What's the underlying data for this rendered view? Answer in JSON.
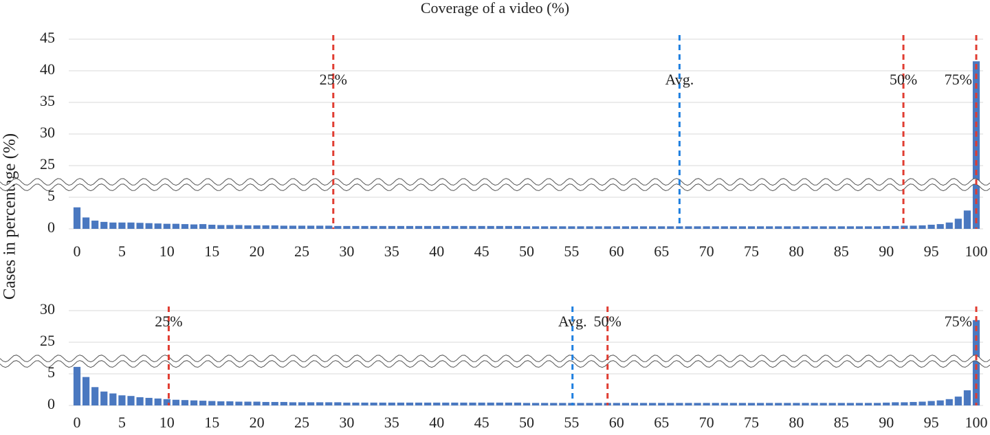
{
  "title": "Coverage of a video (%)",
  "ylabel": "Cases in percentage (%)",
  "chart_data": [
    {
      "type": "bar",
      "color": "#4a78c0",
      "grid": true,
      "x": [
        0,
        1,
        2,
        3,
        4,
        5,
        6,
        7,
        8,
        9,
        10,
        11,
        12,
        13,
        14,
        15,
        16,
        17,
        18,
        19,
        20,
        21,
        22,
        23,
        24,
        25,
        26,
        27,
        28,
        29,
        30,
        31,
        32,
        33,
        34,
        35,
        36,
        37,
        38,
        39,
        40,
        41,
        42,
        43,
        44,
        45,
        46,
        47,
        48,
        49,
        50,
        51,
        52,
        53,
        54,
        55,
        56,
        57,
        58,
        59,
        60,
        61,
        62,
        63,
        64,
        65,
        66,
        67,
        68,
        69,
        70,
        71,
        72,
        73,
        74,
        75,
        76,
        77,
        78,
        79,
        80,
        81,
        82,
        83,
        84,
        85,
        86,
        87,
        88,
        89,
        90,
        91,
        92,
        93,
        94,
        95,
        96,
        97,
        98,
        99,
        100
      ],
      "values": [
        3.4,
        1.8,
        1.3,
        1.1,
        1.0,
        1.0,
        1.0,
        0.95,
        0.9,
        0.85,
        0.8,
        0.8,
        0.75,
        0.7,
        0.75,
        0.65,
        0.6,
        0.6,
        0.6,
        0.55,
        0.55,
        0.55,
        0.55,
        0.5,
        0.5,
        0.5,
        0.5,
        0.5,
        0.5,
        0.45,
        0.45,
        0.45,
        0.45,
        0.45,
        0.45,
        0.45,
        0.45,
        0.45,
        0.45,
        0.45,
        0.45,
        0.45,
        0.45,
        0.45,
        0.45,
        0.45,
        0.45,
        0.45,
        0.45,
        0.45,
        0.4,
        0.4,
        0.4,
        0.4,
        0.4,
        0.4,
        0.4,
        0.4,
        0.4,
        0.4,
        0.4,
        0.4,
        0.4,
        0.4,
        0.4,
        0.4,
        0.4,
        0.4,
        0.4,
        0.4,
        0.4,
        0.4,
        0.4,
        0.4,
        0.4,
        0.4,
        0.4,
        0.4,
        0.4,
        0.4,
        0.4,
        0.4,
        0.4,
        0.4,
        0.4,
        0.4,
        0.4,
        0.4,
        0.4,
        0.4,
        0.45,
        0.45,
        0.5,
        0.5,
        0.55,
        0.65,
        0.75,
        1.0,
        1.6,
        2.9,
        41.5
      ],
      "xlim": [
        0,
        100
      ],
      "xticks": [
        0,
        5,
        10,
        15,
        20,
        25,
        30,
        35,
        40,
        45,
        50,
        55,
        60,
        65,
        70,
        75,
        80,
        85,
        90,
        95,
        100
      ],
      "ylim": [
        0,
        45
      ],
      "yticks": [
        0,
        5,
        25,
        30,
        35,
        40,
        45
      ],
      "axis_break": [
        7,
        22
      ],
      "vlines": [
        {
          "x": 28.5,
          "label": "25%",
          "color": "#e03c31"
        },
        {
          "x": 67,
          "label": "Avg.",
          "color": "#1e7fe0"
        },
        {
          "x": 91.9,
          "label": "50%",
          "color": "#e03c31"
        },
        {
          "x": 100,
          "label": "75%",
          "color": "#e03c31"
        }
      ]
    },
    {
      "type": "bar",
      "color": "#4a78c0",
      "grid": true,
      "x": [
        0,
        1,
        2,
        3,
        4,
        5,
        6,
        7,
        8,
        9,
        10,
        11,
        12,
        13,
        14,
        15,
        16,
        17,
        18,
        19,
        20,
        21,
        22,
        23,
        24,
        25,
        26,
        27,
        28,
        29,
        30,
        31,
        32,
        33,
        34,
        35,
        36,
        37,
        38,
        39,
        40,
        41,
        42,
        43,
        44,
        45,
        46,
        47,
        48,
        49,
        50,
        51,
        52,
        53,
        54,
        55,
        56,
        57,
        58,
        59,
        60,
        61,
        62,
        63,
        64,
        65,
        66,
        67,
        68,
        69,
        70,
        71,
        72,
        73,
        74,
        75,
        76,
        77,
        78,
        79,
        80,
        81,
        82,
        83,
        84,
        85,
        86,
        87,
        88,
        89,
        90,
        91,
        92,
        93,
        94,
        95,
        96,
        97,
        98,
        99,
        100
      ],
      "values": [
        6.1,
        4.5,
        2.9,
        2.2,
        1.9,
        1.6,
        1.5,
        1.3,
        1.2,
        1.1,
        1.0,
        0.9,
        0.85,
        0.8,
        0.75,
        0.7,
        0.65,
        0.65,
        0.6,
        0.6,
        0.6,
        0.55,
        0.55,
        0.55,
        0.5,
        0.5,
        0.5,
        0.5,
        0.5,
        0.5,
        0.45,
        0.45,
        0.45,
        0.45,
        0.45,
        0.45,
        0.45,
        0.45,
        0.45,
        0.45,
        0.45,
        0.45,
        0.45,
        0.45,
        0.45,
        0.45,
        0.45,
        0.45,
        0.45,
        0.45,
        0.4,
        0.4,
        0.4,
        0.4,
        0.4,
        0.4,
        0.4,
        0.4,
        0.4,
        0.4,
        0.4,
        0.4,
        0.4,
        0.4,
        0.4,
        0.4,
        0.4,
        0.4,
        0.4,
        0.4,
        0.4,
        0.4,
        0.4,
        0.4,
        0.4,
        0.4,
        0.4,
        0.4,
        0.4,
        0.4,
        0.4,
        0.4,
        0.4,
        0.4,
        0.4,
        0.4,
        0.4,
        0.4,
        0.4,
        0.4,
        0.45,
        0.5,
        0.5,
        0.55,
        0.6,
        0.7,
        0.8,
        1.0,
        1.4,
        2.4,
        28.5
      ],
      "xlim": [
        0,
        100
      ],
      "xticks": [
        0,
        5,
        10,
        15,
        20,
        25,
        30,
        35,
        40,
        45,
        50,
        55,
        60,
        65,
        70,
        75,
        80,
        85,
        90,
        95,
        100
      ],
      "ylim": [
        0,
        30
      ],
      "yticks": [
        0,
        5,
        25,
        30
      ],
      "axis_break": [
        7,
        22
      ],
      "vlines": [
        {
          "x": 10.2,
          "label": "25%",
          "color": "#e03c31"
        },
        {
          "x": 55.1,
          "label": "Avg.",
          "color": "#1e7fe0"
        },
        {
          "x": 59,
          "label": "50%",
          "color": "#e03c31"
        },
        {
          "x": 100,
          "label": "75%",
          "color": "#e03c31"
        }
      ]
    }
  ]
}
